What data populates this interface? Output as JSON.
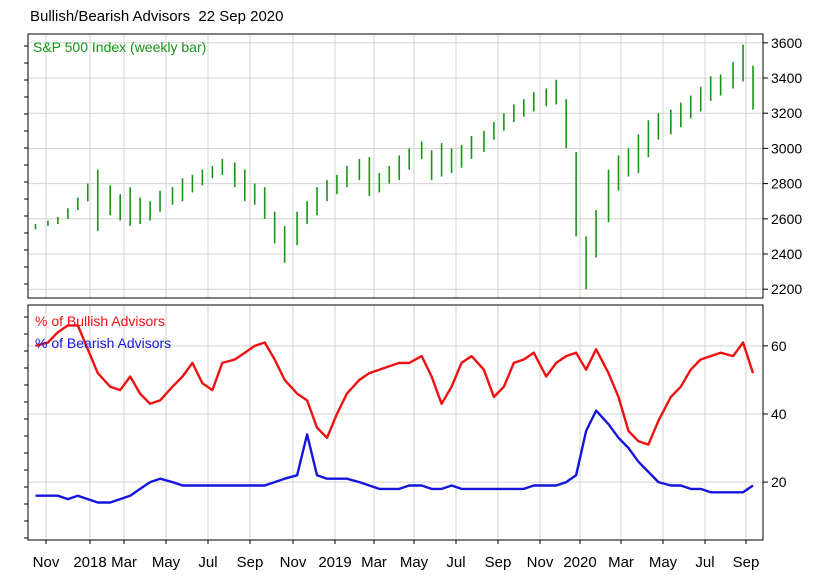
{
  "title": "Bullish/Bearish Advisors  22 Sep 2020",
  "x_tick_labels": [
    "Nov",
    "2018",
    "Mar",
    "May",
    "Jul",
    "Sep",
    "Nov",
    "2019",
    "Mar",
    "May",
    "Jul",
    "Sep",
    "Nov",
    "2020",
    "Mar",
    "May",
    "Jul",
    "Sep"
  ],
  "colors": {
    "price": "#159615",
    "bull": "#ee1111",
    "bear": "#1515dd",
    "grid": "#d3d3d3"
  },
  "chart_data": [
    {
      "type": "bar",
      "subtype": "ohlc-weekly",
      "legend": "S&P 500 Index (weekly bar)",
      "y_ticks": [
        2200,
        2400,
        2600,
        2800,
        3000,
        3200,
        3400,
        3600
      ],
      "ylim": [
        2150,
        3650
      ],
      "grid": true,
      "x": [
        17.83,
        17.88,
        17.92,
        17.96,
        18.0,
        18.04,
        18.08,
        18.13,
        18.17,
        18.21,
        18.25,
        18.29,
        18.33,
        18.38,
        18.42,
        18.46,
        18.5,
        18.54,
        18.58,
        18.63,
        18.67,
        18.71,
        18.75,
        18.79,
        18.83,
        18.88,
        18.92,
        18.96,
        19.0,
        19.04,
        19.08,
        19.13,
        19.17,
        19.21,
        19.25,
        19.29,
        19.33,
        19.38,
        19.42,
        19.46,
        19.5,
        19.54,
        19.58,
        19.63,
        19.67,
        19.71,
        19.75,
        19.79,
        19.83,
        19.88,
        19.92,
        19.96,
        20.0,
        20.04,
        20.08,
        20.13,
        20.17,
        20.21,
        20.25,
        20.29,
        20.33,
        20.38,
        20.42,
        20.46,
        20.5,
        20.54,
        20.58,
        20.63,
        20.67,
        20.71
      ],
      "high": [
        2570,
        2590,
        2610,
        2660,
        2720,
        2800,
        2880,
        2790,
        2740,
        2780,
        2720,
        2700,
        2760,
        2780,
        2830,
        2850,
        2880,
        2900,
        2940,
        2920,
        2880,
        2800,
        2780,
        2640,
        2560,
        2640,
        2700,
        2780,
        2820,
        2850,
        2900,
        2940,
        2950,
        2860,
        2900,
        2960,
        3000,
        3040,
        2990,
        3030,
        3000,
        3020,
        3070,
        3100,
        3150,
        3200,
        3250,
        3280,
        3320,
        3340,
        3390,
        3280,
        2980,
        2500,
        2650,
        2880,
        2960,
        3000,
        3080,
        3160,
        3200,
        3220,
        3260,
        3300,
        3350,
        3410,
        3420,
        3490,
        3590,
        3470
      ],
      "low": [
        2540,
        2560,
        2570,
        2600,
        2650,
        2700,
        2530,
        2620,
        2590,
        2560,
        2570,
        2590,
        2640,
        2680,
        2700,
        2750,
        2790,
        2830,
        2850,
        2780,
        2700,
        2680,
        2600,
        2460,
        2350,
        2450,
        2570,
        2620,
        2700,
        2740,
        2780,
        2820,
        2730,
        2750,
        2800,
        2820,
        2880,
        2940,
        2820,
        2840,
        2860,
        2890,
        2940,
        2980,
        3050,
        3100,
        3150,
        3180,
        3210,
        3240,
        3250,
        3000,
        2500,
        2200,
        2380,
        2580,
        2760,
        2840,
        2860,
        2950,
        3050,
        3080,
        3120,
        3170,
        3210,
        3270,
        3300,
        3340,
        3380,
        3220
      ]
    },
    {
      "type": "line",
      "y_ticks": [
        20,
        40,
        60
      ],
      "ylim": [
        3,
        72
      ],
      "grid": true,
      "series": [
        {
          "name": "% of Bullish Advisors",
          "x": [
            17.83,
            17.88,
            17.92,
            17.96,
            18.0,
            18.04,
            18.08,
            18.13,
            18.17,
            18.21,
            18.25,
            18.29,
            18.33,
            18.38,
            18.42,
            18.46,
            18.5,
            18.54,
            18.58,
            18.63,
            18.67,
            18.71,
            18.75,
            18.79,
            18.83,
            18.88,
            18.92,
            18.96,
            19.0,
            19.04,
            19.08,
            19.13,
            19.17,
            19.21,
            19.25,
            19.29,
            19.33,
            19.38,
            19.42,
            19.46,
            19.5,
            19.54,
            19.58,
            19.63,
            19.67,
            19.71,
            19.75,
            19.79,
            19.83,
            19.88,
            19.92,
            19.96,
            20.0,
            20.04,
            20.08,
            20.13,
            20.17,
            20.21,
            20.25,
            20.29,
            20.33,
            20.38,
            20.42,
            20.46,
            20.5,
            20.54,
            20.58,
            20.63,
            20.67,
            20.71
          ],
          "values": [
            60,
            61,
            64,
            66,
            66,
            59,
            52,
            48,
            47,
            51,
            46,
            43,
            44,
            48,
            51,
            55,
            49,
            47,
            55,
            56,
            58,
            60,
            61,
            56,
            50,
            46,
            44,
            36,
            33,
            40,
            46,
            50,
            52,
            53,
            54,
            55,
            55,
            57,
            51,
            43,
            48,
            55,
            57,
            53,
            45,
            48,
            55,
            56,
            58,
            51,
            55,
            57,
            58,
            53,
            59,
            52,
            45,
            35,
            32,
            31,
            38,
            45,
            48,
            53,
            56,
            57,
            58,
            57,
            61,
            52
          ]
        },
        {
          "name": "% of Bearish Advisors",
          "x": [
            17.83,
            17.88,
            17.92,
            17.96,
            18.0,
            18.04,
            18.08,
            18.13,
            18.17,
            18.21,
            18.25,
            18.29,
            18.33,
            18.38,
            18.42,
            18.46,
            18.5,
            18.54,
            18.58,
            18.63,
            18.67,
            18.71,
            18.75,
            18.79,
            18.83,
            18.88,
            18.92,
            18.96,
            19.0,
            19.04,
            19.08,
            19.13,
            19.17,
            19.21,
            19.25,
            19.29,
            19.33,
            19.38,
            19.42,
            19.46,
            19.5,
            19.54,
            19.58,
            19.63,
            19.67,
            19.71,
            19.75,
            19.79,
            19.83,
            19.88,
            19.92,
            19.96,
            20.0,
            20.04,
            20.08,
            20.13,
            20.17,
            20.21,
            20.25,
            20.29,
            20.33,
            20.38,
            20.42,
            20.46,
            20.5,
            20.54,
            20.58,
            20.63,
            20.67,
            20.71
          ],
          "values": [
            16,
            16,
            16,
            15,
            16,
            15,
            14,
            14,
            15,
            16,
            18,
            20,
            21,
            20,
            19,
            19,
            19,
            19,
            19,
            19,
            19,
            19,
            19,
            20,
            21,
            22,
            34,
            22,
            21,
            21,
            21,
            20,
            19,
            18,
            18,
            18,
            19,
            19,
            18,
            18,
            19,
            18,
            18,
            18,
            18,
            18,
            18,
            18,
            19,
            19,
            19,
            20,
            22,
            35,
            41,
            37,
            33,
            30,
            26,
            23,
            20,
            19,
            19,
            18,
            18,
            17,
            17,
            17,
            17,
            19
          ]
        }
      ]
    }
  ]
}
